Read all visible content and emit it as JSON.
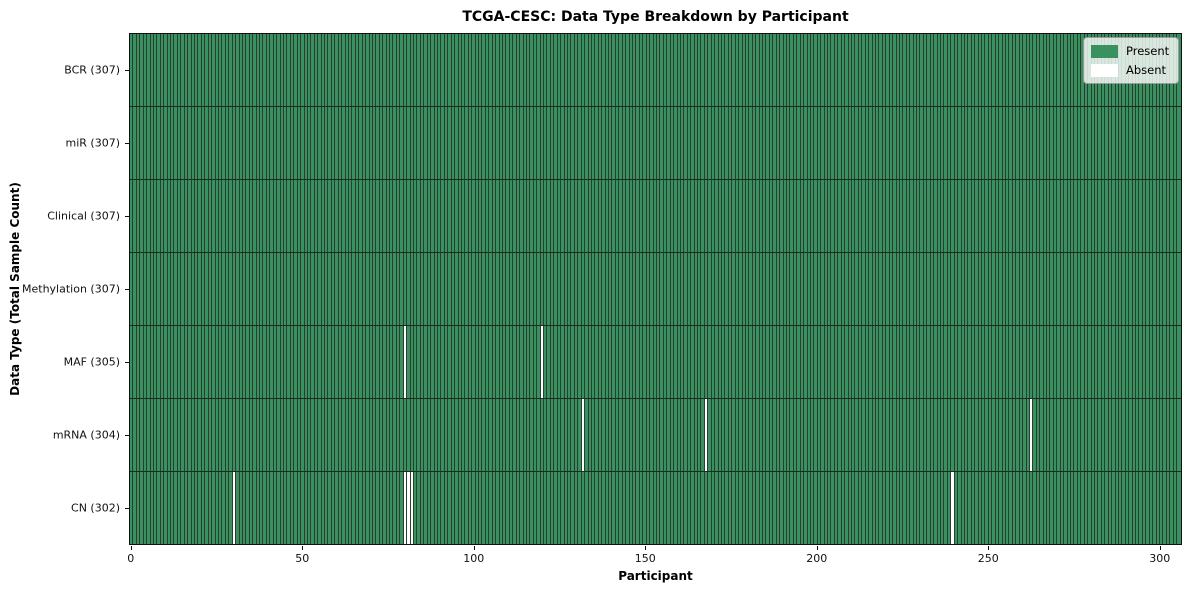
{
  "title": "TCGA-CESC: Data Type Breakdown by Participant",
  "chart_data": {
    "type": "heatmap",
    "title": "TCGA-CESC: Data Type Breakdown by Participant",
    "xlabel": "Participant",
    "ylabel": "Data Type (Total Sample Count)",
    "n_participants": 307,
    "x_ticks": [
      0,
      50,
      100,
      150,
      200,
      250,
      300
    ],
    "rows": [
      {
        "label": "BCR (307)",
        "data_type": "BCR",
        "total": 307,
        "absent_participants": []
      },
      {
        "label": "miR (307)",
        "data_type": "miR",
        "total": 307,
        "absent_participants": []
      },
      {
        "label": "Clinical (307)",
        "data_type": "Clinical",
        "total": 307,
        "absent_participants": []
      },
      {
        "label": "Methylation (307)",
        "data_type": "Methylation",
        "total": 307,
        "absent_participants": []
      },
      {
        "label": "MAF (305)",
        "data_type": "MAF",
        "total": 305,
        "absent_participants": [
          80,
          120
        ]
      },
      {
        "label": "mRNA (304)",
        "data_type": "mRNA",
        "total": 304,
        "absent_participants": [
          132,
          168,
          263
        ]
      },
      {
        "label": "CN (302)",
        "data_type": "CN",
        "total": 302,
        "absent_participants": [
          30,
          80,
          81,
          82,
          240
        ]
      }
    ],
    "legend": [
      {
        "label": "Present",
        "color": "#38915f"
      },
      {
        "label": "Absent",
        "color": "#ffffff"
      }
    ],
    "colors": {
      "present": "#38915f",
      "absent": "#ffffff",
      "grid_line": "#293e31",
      "row_separator": "#1b2a20",
      "spine": "#111111"
    },
    "legend_position": "upper right",
    "grid": true
  }
}
